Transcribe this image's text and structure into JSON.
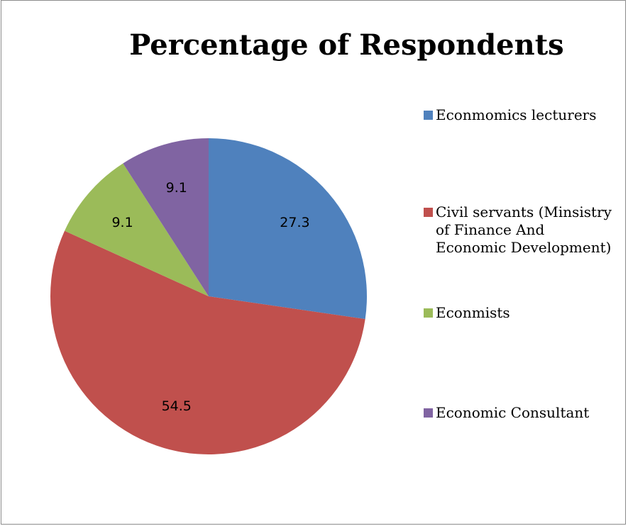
{
  "chart_data": {
    "type": "pie",
    "title": "Percentage of Respondents",
    "categories": [
      "Econmomics lecturers",
      "Civil servants (Minsistry of Finance And Economic Development)",
      "Econmists",
      "Economic Consultant"
    ],
    "values": [
      27.3,
      54.5,
      9.1,
      9.1
    ],
    "data_labels": [
      "27.3",
      "54.5",
      "9.1",
      "9.1"
    ],
    "colors": [
      "#4f81bd",
      "#c0504d",
      "#9bbb59",
      "#8064a2"
    ],
    "legend": "right"
  }
}
